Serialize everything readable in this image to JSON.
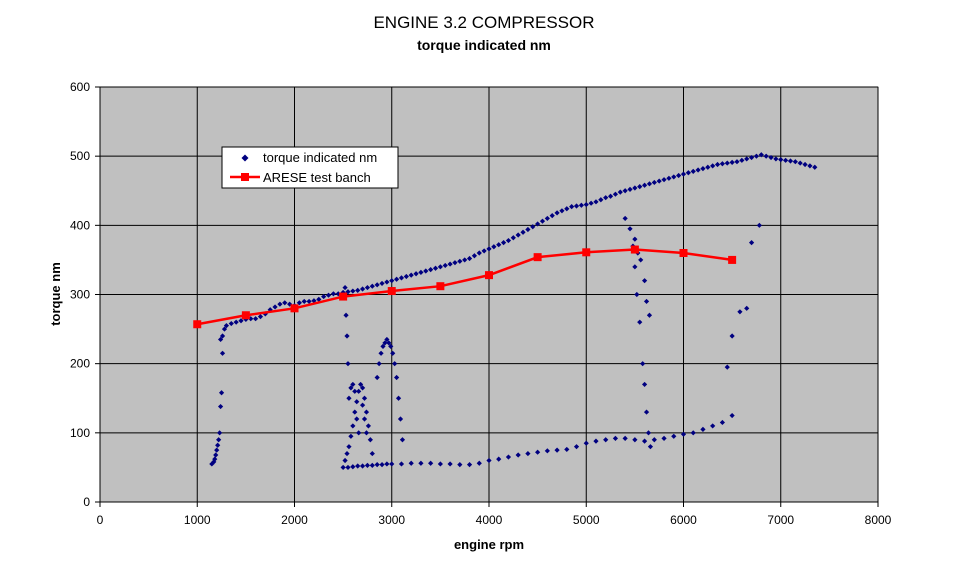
{
  "chart_data": {
    "type": "scatter",
    "title": "ENGINE 3.2 COMPRESSOR",
    "subtitle": "torque indicated nm",
    "xlabel": "engine rpm",
    "ylabel": "torque nm",
    "xlim": [
      0,
      8000
    ],
    "ylim": [
      0,
      600
    ],
    "x_ticks": [
      0,
      1000,
      2000,
      3000,
      4000,
      5000,
      6000,
      7000,
      8000
    ],
    "y_ticks": [
      0,
      100,
      200,
      300,
      400,
      500,
      600
    ],
    "grid": true,
    "legend_position": "top-left",
    "plot_background": "#c0c0c0",
    "series": [
      {
        "name": "torque indicated nm",
        "kind": "scatter",
        "color": "#000080",
        "marker": "diamond",
        "points": [
          [
            1150,
            55
          ],
          [
            1170,
            58
          ],
          [
            1180,
            62
          ],
          [
            1190,
            68
          ],
          [
            1200,
            75
          ],
          [
            1210,
            82
          ],
          [
            1220,
            90
          ],
          [
            1230,
            100
          ],
          [
            1240,
            138
          ],
          [
            1250,
            158
          ],
          [
            1260,
            215
          ],
          [
            1240,
            235
          ],
          [
            1260,
            240
          ],
          [
            1280,
            250
          ],
          [
            1300,
            255
          ],
          [
            1350,
            258
          ],
          [
            1400,
            260
          ],
          [
            1450,
            262
          ],
          [
            1500,
            264
          ],
          [
            1550,
            265
          ],
          [
            1600,
            265
          ],
          [
            1650,
            268
          ],
          [
            1700,
            272
          ],
          [
            1750,
            278
          ],
          [
            1800,
            282
          ],
          [
            1850,
            286
          ],
          [
            1900,
            288
          ],
          [
            1950,
            286
          ],
          [
            2000,
            284
          ],
          [
            2050,
            288
          ],
          [
            2100,
            290
          ],
          [
            2150,
            290
          ],
          [
            2200,
            291
          ],
          [
            2250,
            293
          ],
          [
            2300,
            297
          ],
          [
            2350,
            299
          ],
          [
            2400,
            301
          ],
          [
            2450,
            301
          ],
          [
            2500,
            303
          ],
          [
            2550,
            304
          ],
          [
            2600,
            305
          ],
          [
            2650,
            306
          ],
          [
            2700,
            308
          ],
          [
            2750,
            310
          ],
          [
            2800,
            312
          ],
          [
            2850,
            314
          ],
          [
            2900,
            316
          ],
          [
            2950,
            318
          ],
          [
            3000,
            320
          ],
          [
            3050,
            322
          ],
          [
            3100,
            324
          ],
          [
            3150,
            326
          ],
          [
            3200,
            328
          ],
          [
            3250,
            330
          ],
          [
            3300,
            332
          ],
          [
            3350,
            334
          ],
          [
            3400,
            336
          ],
          [
            3450,
            338
          ],
          [
            3500,
            340
          ],
          [
            3550,
            342
          ],
          [
            3600,
            344
          ],
          [
            3650,
            346
          ],
          [
            3700,
            348
          ],
          [
            3750,
            350
          ],
          [
            3800,
            352
          ],
          [
            3850,
            356
          ],
          [
            3900,
            360
          ],
          [
            3950,
            363
          ],
          [
            4000,
            366
          ],
          [
            4050,
            369
          ],
          [
            4100,
            372
          ],
          [
            4150,
            375
          ],
          [
            4200,
            378
          ],
          [
            4250,
            382
          ],
          [
            4300,
            386
          ],
          [
            4350,
            390
          ],
          [
            4400,
            394
          ],
          [
            4450,
            398
          ],
          [
            4500,
            402
          ],
          [
            4550,
            406
          ],
          [
            4600,
            410
          ],
          [
            4650,
            414
          ],
          [
            4700,
            418
          ],
          [
            4750,
            421
          ],
          [
            4800,
            424
          ],
          [
            4850,
            427
          ],
          [
            4900,
            428
          ],
          [
            4950,
            429
          ],
          [
            5000,
            430
          ],
          [
            5050,
            432
          ],
          [
            5100,
            434
          ],
          [
            5150,
            437
          ],
          [
            5200,
            440
          ],
          [
            5250,
            442
          ],
          [
            5300,
            445
          ],
          [
            5350,
            448
          ],
          [
            5400,
            450
          ],
          [
            5450,
            452
          ],
          [
            5500,
            454
          ],
          [
            5550,
            456
          ],
          [
            5600,
            458
          ],
          [
            5650,
            460
          ],
          [
            5700,
            462
          ],
          [
            5750,
            464
          ],
          [
            5800,
            466
          ],
          [
            5850,
            468
          ],
          [
            5900,
            470
          ],
          [
            5950,
            472
          ],
          [
            6000,
            474
          ],
          [
            6050,
            476
          ],
          [
            6100,
            478
          ],
          [
            6150,
            480
          ],
          [
            6200,
            482
          ],
          [
            6250,
            484
          ],
          [
            6300,
            486
          ],
          [
            6350,
            488
          ],
          [
            6400,
            489
          ],
          [
            6450,
            490
          ],
          [
            6500,
            491
          ],
          [
            6550,
            492
          ],
          [
            6600,
            494
          ],
          [
            6650,
            496
          ],
          [
            6700,
            498
          ],
          [
            6750,
            500
          ],
          [
            6800,
            502
          ],
          [
            6850,
            500
          ],
          [
            6900,
            498
          ],
          [
            6950,
            496
          ],
          [
            7000,
            495
          ],
          [
            7050,
            494
          ],
          [
            7100,
            493
          ],
          [
            7150,
            492
          ],
          [
            7200,
            490
          ],
          [
            7250,
            488
          ],
          [
            7300,
            486
          ],
          [
            7350,
            484
          ],
          [
            2500,
            50
          ],
          [
            2550,
            50
          ],
          [
            2600,
            51
          ],
          [
            2650,
            52
          ],
          [
            2700,
            52
          ],
          [
            2750,
            53
          ],
          [
            2800,
            53
          ],
          [
            2850,
            54
          ],
          [
            2900,
            54
          ],
          [
            2950,
            55
          ],
          [
            3000,
            55
          ],
          [
            3100,
            55
          ],
          [
            3200,
            56
          ],
          [
            3300,
            56
          ],
          [
            3400,
            56
          ],
          [
            3500,
            55
          ],
          [
            3600,
            55
          ],
          [
            3700,
            54
          ],
          [
            3800,
            54
          ],
          [
            3900,
            56
          ],
          [
            4000,
            60
          ],
          [
            4100,
            62
          ],
          [
            4200,
            65
          ],
          [
            4300,
            68
          ],
          [
            4400,
            70
          ],
          [
            4500,
            72
          ],
          [
            4600,
            74
          ],
          [
            4700,
            75
          ],
          [
            4800,
            76
          ],
          [
            4900,
            80
          ],
          [
            5000,
            85
          ],
          [
            5100,
            88
          ],
          [
            5200,
            90
          ],
          [
            5300,
            92
          ],
          [
            5400,
            92
          ],
          [
            5500,
            90
          ],
          [
            5600,
            88
          ],
          [
            5700,
            90
          ],
          [
            5800,
            92
          ],
          [
            5900,
            95
          ],
          [
            6000,
            98
          ],
          [
            6100,
            100
          ],
          [
            6200,
            105
          ],
          [
            6300,
            110
          ],
          [
            6400,
            115
          ],
          [
            6500,
            125
          ],
          [
            2520,
            60
          ],
          [
            2540,
            70
          ],
          [
            2560,
            80
          ],
          [
            2580,
            95
          ],
          [
            2600,
            110
          ],
          [
            2620,
            130
          ],
          [
            2640,
            145
          ],
          [
            2660,
            160
          ],
          [
            2680,
            170
          ],
          [
            2700,
            165
          ],
          [
            2720,
            150
          ],
          [
            2740,
            130
          ],
          [
            2760,
            110
          ],
          [
            2780,
            90
          ],
          [
            2800,
            70
          ],
          [
            2560,
            150
          ],
          [
            2580,
            165
          ],
          [
            2600,
            170
          ],
          [
            2620,
            160
          ],
          [
            2640,
            120
          ],
          [
            2660,
            100
          ],
          [
            2700,
            140
          ],
          [
            2720,
            120
          ],
          [
            2740,
            100
          ],
          [
            2850,
            180
          ],
          [
            2870,
            200
          ],
          [
            2890,
            215
          ],
          [
            2910,
            225
          ],
          [
            2930,
            230
          ],
          [
            2950,
            235
          ],
          [
            2970,
            230
          ],
          [
            2990,
            225
          ],
          [
            3010,
            215
          ],
          [
            3030,
            200
          ],
          [
            3050,
            180
          ],
          [
            3070,
            150
          ],
          [
            3090,
            120
          ],
          [
            3110,
            90
          ],
          [
            2520,
            310
          ],
          [
            2530,
            270
          ],
          [
            2540,
            240
          ],
          [
            2550,
            200
          ],
          [
            5400,
            410
          ],
          [
            5450,
            395
          ],
          [
            5480,
            370
          ],
          [
            5500,
            340
          ],
          [
            5520,
            300
          ],
          [
            5550,
            260
          ],
          [
            5580,
            200
          ],
          [
            5600,
            170
          ],
          [
            5620,
            130
          ],
          [
            5640,
            100
          ],
          [
            5660,
            80
          ],
          [
            5600,
            320
          ],
          [
            5620,
            290
          ],
          [
            5650,
            270
          ],
          [
            5500,
            380
          ],
          [
            5530,
            360
          ],
          [
            5560,
            350
          ],
          [
            6450,
            195
          ],
          [
            6500,
            240
          ],
          [
            6580,
            275
          ],
          [
            6650,
            280
          ],
          [
            6700,
            375
          ],
          [
            6780,
            400
          ]
        ]
      },
      {
        "name": "ARESE test banch",
        "kind": "line",
        "color": "#ff0000",
        "marker": "square",
        "points": [
          [
            1000,
            257
          ],
          [
            1500,
            270
          ],
          [
            2000,
            280
          ],
          [
            2500,
            297
          ],
          [
            3000,
            305
          ],
          [
            3500,
            312
          ],
          [
            4000,
            328
          ],
          [
            4500,
            354
          ],
          [
            5000,
            361
          ],
          [
            5500,
            365
          ],
          [
            6000,
            360
          ],
          [
            6500,
            350
          ]
        ]
      }
    ]
  }
}
